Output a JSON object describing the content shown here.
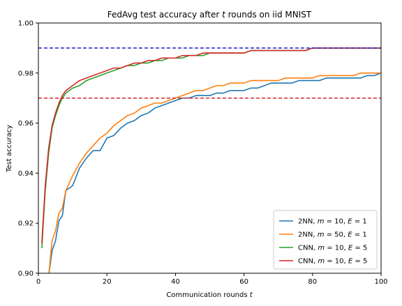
{
  "chart_data": {
    "type": "line",
    "title_prefix": "FedAvg test accuracy after",
    "title_var": "t",
    "title_suffix": "rounds on iid MNIST",
    "xlabel_prefix": "Communication rounds",
    "xlabel_var": "t",
    "ylabel": "Test accuracy",
    "xlim": [
      0,
      100
    ],
    "ylim": [
      0.9,
      1.0
    ],
    "xticks": [
      "0",
      "20",
      "40",
      "60",
      "80",
      "100"
    ],
    "yticks": [
      "0.90",
      "0.92",
      "0.94",
      "0.96",
      "0.98",
      "1.00"
    ],
    "grid": false,
    "legend_position": "lower-right",
    "hlines": [
      {
        "y": 0.99,
        "color": "#1f1fd6",
        "style": "dashed"
      },
      {
        "y": 0.97,
        "color": "#d62728",
        "style": "dashed"
      }
    ],
    "series": [
      {
        "name": "2NN, m = 10, E = 1",
        "legend": {
          "model": "2NN",
          "m": "10",
          "E": "1"
        },
        "color": "#1f77b4",
        "x": [
          3,
          4,
          5,
          6,
          7,
          8,
          10,
          12,
          14,
          16,
          18,
          20,
          22,
          24,
          26,
          28,
          30,
          32,
          34,
          36,
          38,
          40,
          42,
          44,
          46,
          48,
          50,
          52,
          54,
          56,
          58,
          60,
          62,
          64,
          66,
          68,
          70,
          72,
          74,
          76,
          78,
          80,
          82,
          84,
          86,
          88,
          90,
          92,
          94,
          96,
          98,
          100
        ],
        "y": [
          0.899,
          0.909,
          0.913,
          0.921,
          0.923,
          0.933,
          0.935,
          0.942,
          0.946,
          0.949,
          0.949,
          0.954,
          0.955,
          0.958,
          0.96,
          0.961,
          0.963,
          0.964,
          0.966,
          0.967,
          0.968,
          0.969,
          0.97,
          0.97,
          0.971,
          0.971,
          0.971,
          0.972,
          0.972,
          0.973,
          0.973,
          0.973,
          0.974,
          0.974,
          0.975,
          0.976,
          0.976,
          0.976,
          0.976,
          0.977,
          0.977,
          0.977,
          0.977,
          0.978,
          0.978,
          0.978,
          0.978,
          0.978,
          0.978,
          0.979,
          0.979,
          0.98
        ]
      },
      {
        "name": "2NN, m = 50, E = 1",
        "legend": {
          "model": "2NN",
          "m": "50",
          "E": "1"
        },
        "color": "#ff7f0e",
        "x": [
          3,
          4,
          5,
          6,
          7,
          8,
          10,
          12,
          14,
          16,
          18,
          20,
          22,
          24,
          26,
          28,
          30,
          32,
          34,
          36,
          38,
          40,
          42,
          44,
          46,
          48,
          50,
          52,
          54,
          56,
          58,
          60,
          62,
          64,
          66,
          68,
          70,
          72,
          74,
          76,
          78,
          80,
          82,
          84,
          86,
          88,
          90,
          92,
          94,
          96,
          98,
          100
        ],
        "y": [
          0.899,
          0.913,
          0.917,
          0.924,
          0.926,
          0.933,
          0.939,
          0.944,
          0.948,
          0.951,
          0.954,
          0.956,
          0.959,
          0.961,
          0.963,
          0.964,
          0.966,
          0.967,
          0.968,
          0.968,
          0.969,
          0.97,
          0.971,
          0.972,
          0.973,
          0.973,
          0.974,
          0.975,
          0.975,
          0.976,
          0.976,
          0.976,
          0.977,
          0.977,
          0.977,
          0.977,
          0.977,
          0.978,
          0.978,
          0.978,
          0.978,
          0.978,
          0.979,
          0.979,
          0.979,
          0.979,
          0.979,
          0.979,
          0.98,
          0.98,
          0.98,
          0.98
        ]
      },
      {
        "name": "CNN, m = 10, E = 5",
        "legend": {
          "model": "CNN",
          "m": "10",
          "E": "5"
        },
        "color": "#2ca02c",
        "x": [
          1,
          2,
          3,
          4,
          5,
          6,
          7,
          8,
          9,
          10,
          12,
          14,
          16,
          18,
          20,
          22,
          24,
          26,
          28,
          30,
          32,
          34,
          36,
          38,
          40,
          42,
          44,
          46,
          48,
          50,
          52,
          54,
          56,
          58,
          60,
          62,
          64,
          66,
          68,
          70,
          72,
          74,
          76,
          78,
          80,
          82,
          84,
          86,
          88,
          90,
          92,
          94,
          96,
          98,
          100
        ],
        "y": [
          0.91,
          0.933,
          0.948,
          0.958,
          0.963,
          0.967,
          0.97,
          0.972,
          0.973,
          0.974,
          0.975,
          0.977,
          0.978,
          0.979,
          0.98,
          0.981,
          0.982,
          0.983,
          0.983,
          0.984,
          0.984,
          0.985,
          0.985,
          0.986,
          0.986,
          0.986,
          0.987,
          0.987,
          0.987,
          0.988,
          0.988,
          0.988,
          0.988,
          0.988,
          0.988,
          0.989,
          0.989,
          0.989,
          0.989,
          0.989,
          0.989,
          0.989,
          0.989,
          0.989,
          0.99,
          0.99,
          0.99,
          0.99,
          0.99,
          0.99,
          0.99,
          0.99,
          0.99,
          0.99,
          0.99
        ]
      },
      {
        "name": "CNN, m = 10, E = 5",
        "legend": {
          "model": "CNN",
          "m": "10",
          "E": "5"
        },
        "color": "#d62728",
        "x": [
          1,
          2,
          3,
          4,
          5,
          6,
          7,
          8,
          9,
          10,
          12,
          14,
          16,
          18,
          20,
          22,
          24,
          26,
          28,
          30,
          32,
          34,
          36,
          38,
          40,
          42,
          44,
          46,
          48,
          50,
          52,
          54,
          56,
          58,
          60,
          62,
          64,
          66,
          68,
          70,
          72,
          74,
          76,
          78,
          80,
          82,
          84,
          86,
          88,
          90,
          92,
          94,
          96,
          98,
          100
        ],
        "y": [
          0.912,
          0.935,
          0.95,
          0.959,
          0.964,
          0.968,
          0.971,
          0.973,
          0.974,
          0.975,
          0.977,
          0.978,
          0.979,
          0.98,
          0.981,
          0.982,
          0.982,
          0.983,
          0.984,
          0.984,
          0.985,
          0.985,
          0.986,
          0.986,
          0.986,
          0.987,
          0.987,
          0.987,
          0.988,
          0.988,
          0.988,
          0.988,
          0.988,
          0.988,
          0.988,
          0.989,
          0.989,
          0.989,
          0.989,
          0.989,
          0.989,
          0.989,
          0.989,
          0.989,
          0.99,
          0.99,
          0.99,
          0.99,
          0.99,
          0.99,
          0.99,
          0.99,
          0.99,
          0.99,
          0.99
        ]
      }
    ]
  }
}
